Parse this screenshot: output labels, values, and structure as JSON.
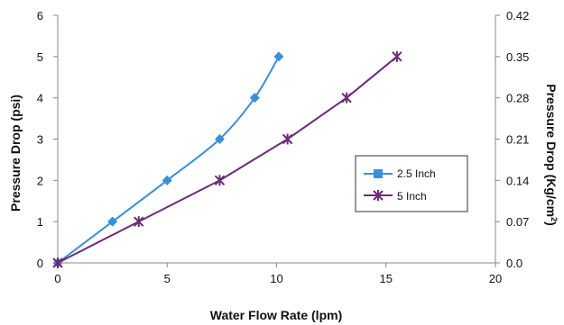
{
  "chart_data": {
    "type": "line",
    "xlabel": "Water Flow Rate (lpm)",
    "ylabel": "Pressure Drop (psi)",
    "y2label": "Pressure Drop (Kg/cm²)",
    "y2label_main": "Pressure Drop (Kg/cm",
    "y2label_sup": "2",
    "y2label_close": ")",
    "xlim": [
      0,
      20
    ],
    "ylim": [
      0,
      6
    ],
    "y2lim": [
      0,
      0.42
    ],
    "x_ticks": [
      "0",
      "5",
      "10",
      "15",
      "20"
    ],
    "y_ticks": [
      "0",
      "1",
      "2",
      "3",
      "4",
      "5",
      "6"
    ],
    "y2_ticks": [
      "0.0",
      "0.07",
      "0.14",
      "0.21",
      "0.28",
      "0.35",
      "0.42"
    ],
    "grid": false,
    "legend_position": "right-middle",
    "series": [
      {
        "name": "2.5 Inch",
        "color": "#3a8fd9",
        "marker": "diamond",
        "x": [
          0,
          2.5,
          5,
          7.4,
          9,
          10.1
        ],
        "y": [
          0,
          1,
          2,
          3,
          4,
          5
        ]
      },
      {
        "name": "5 Inch",
        "color": "#6b2c77",
        "marker": "star",
        "x": [
          0,
          3.7,
          7.4,
          10.5,
          13.2,
          15.5
        ],
        "y": [
          0,
          1,
          2,
          3,
          4,
          5
        ]
      }
    ]
  }
}
